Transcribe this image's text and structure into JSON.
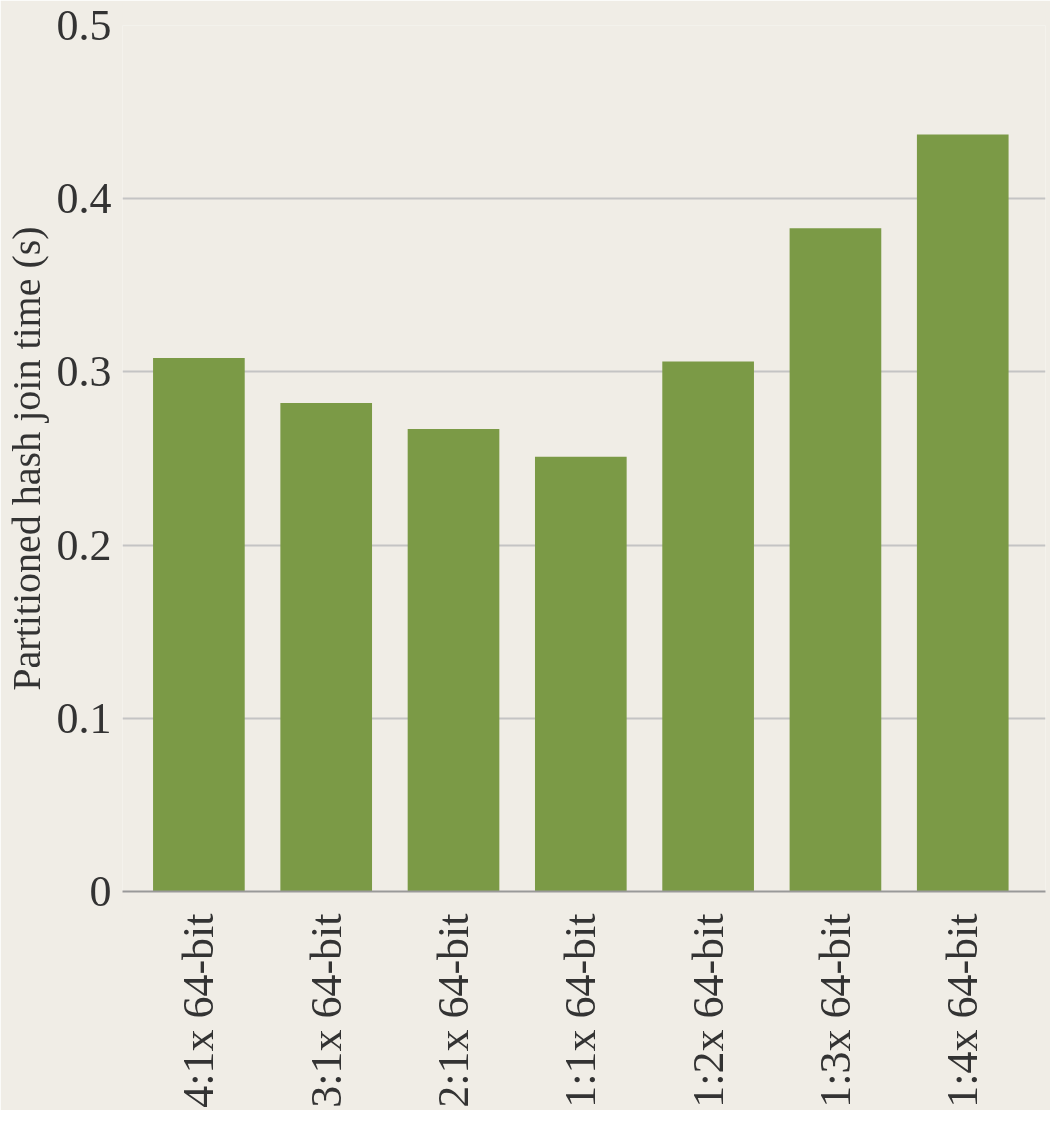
{
  "chart_data": {
    "type": "bar",
    "ylabel": "Partitioned hash join time (s)",
    "categories": [
      "4:1x  64-bit",
      "3:1x  64-bit",
      "2:1x  64-bit",
      "1:1x  64-bit",
      "1:2x  64-bit",
      "1:3x  64-bit",
      "1:4x  64-bit"
    ],
    "values": [
      0.308,
      0.282,
      0.267,
      0.251,
      0.306,
      0.383,
      0.437
    ],
    "color": "#7b9a46",
    "ylim": [
      0,
      0.5
    ],
    "yticks": [
      0,
      0.1,
      0.2,
      0.3,
      0.4,
      0.5
    ],
    "grid": "y"
  }
}
